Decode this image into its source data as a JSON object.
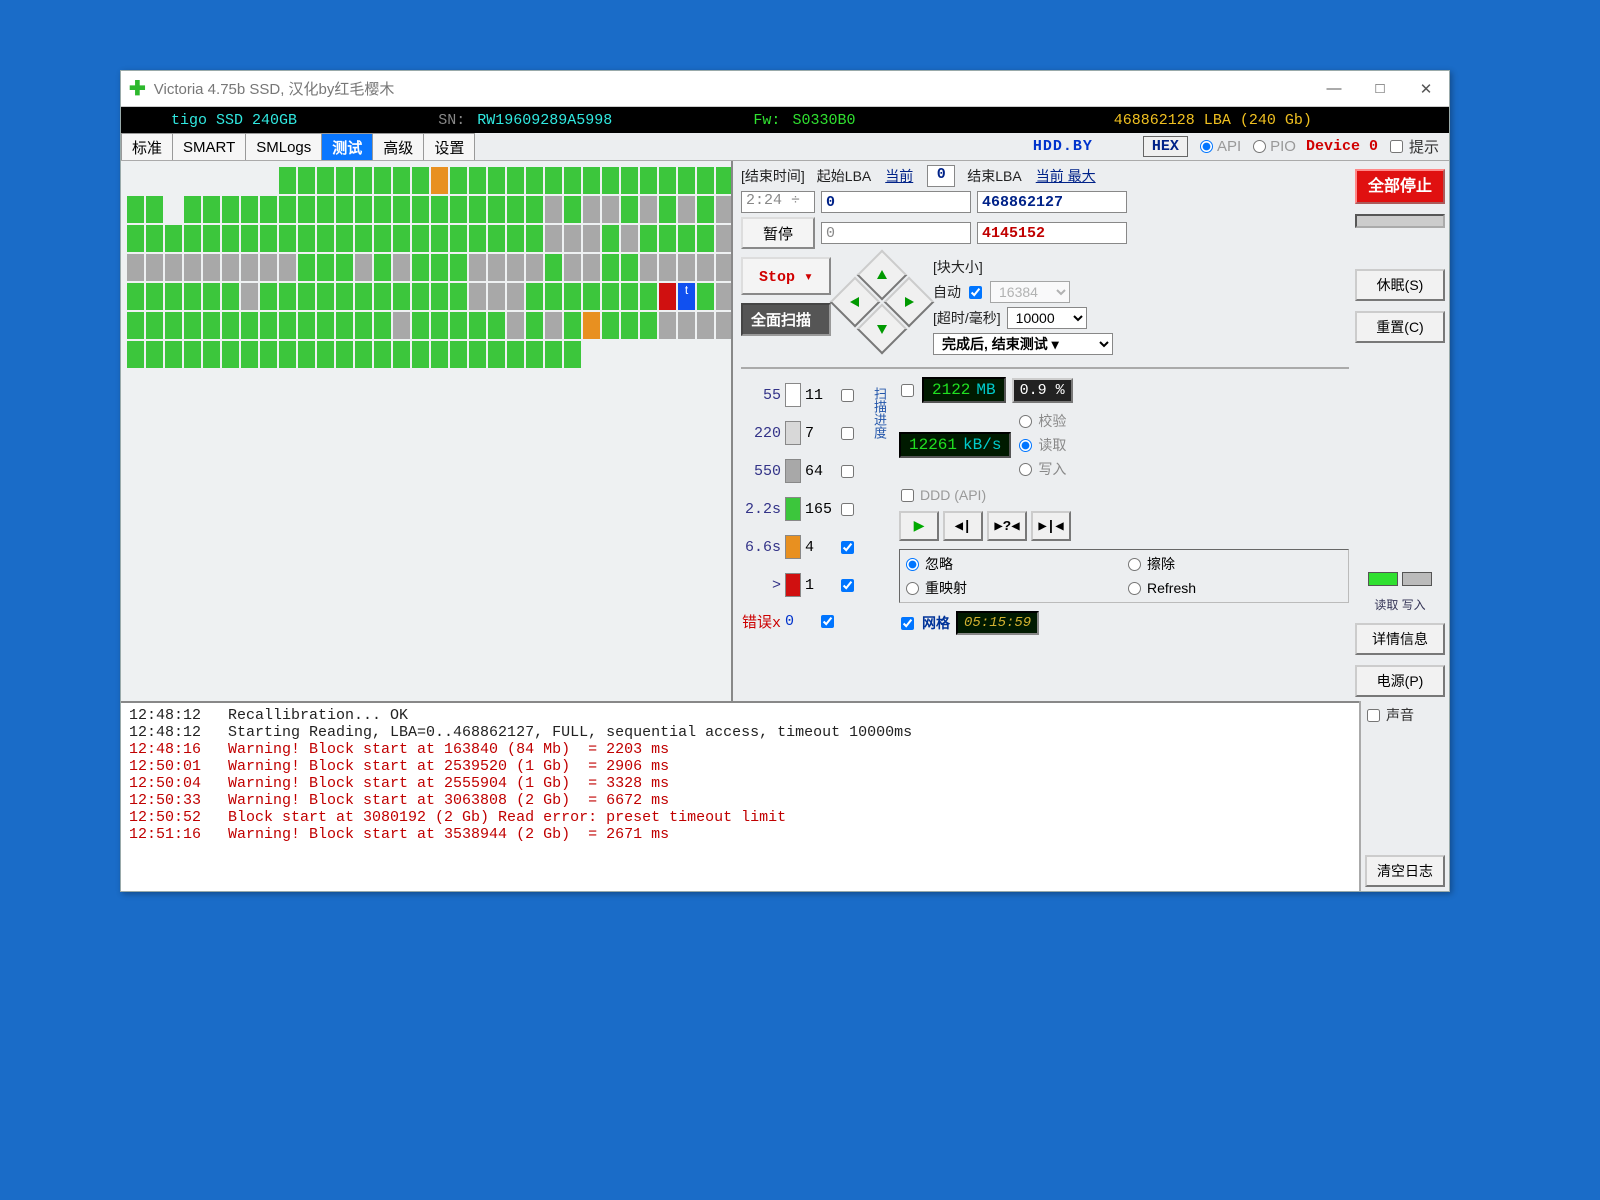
{
  "title": "Victoria 4.75b SSD, 汉化by红毛樱木",
  "info": {
    "model_label": "tigo SSD 240GB",
    "sn_label": "SN: ",
    "sn": "RW19609289A5998",
    "fw_label": "Fw: ",
    "fw": "S0330B0",
    "lba": "468862128 LBA (240 Gb)"
  },
  "tabs": {
    "items": [
      {
        "key": "std",
        "label": "标准"
      },
      {
        "key": "smart",
        "label": "SMART"
      },
      {
        "key": "smlogs",
        "label": "SMLogs"
      },
      {
        "key": "test",
        "label": "测试",
        "active": true
      },
      {
        "key": "adv",
        "label": "高级"
      },
      {
        "key": "set",
        "label": "设置"
      }
    ],
    "hdd_by": "HDD.BY",
    "hex": "HEX",
    "api": "API",
    "pio": "PIO",
    "device": "Device 0",
    "hint": "提示"
  },
  "grid": {
    "cols": 32,
    "rows_total": 8,
    "row1_lead_empty": 8,
    "colors": {
      "ok": "#3cc63c",
      "gray": "#a8a8a8",
      "orange": "#e89020",
      "red": "#d01010",
      "blue": "#1050f0",
      "bg": "#eef1f2"
    },
    "rows": [
      "________ggggggggOggggggggggggggg",
      "gg.gggggggggggggggggggGgGGgGgGgG",
      "ggggggggggggggggggggggGGGgGggggG",
      "GGGGGGGGGgggGgGgggGGGGgGGggGGGGG",
      "ggggggGgggggggggggGGGgggggggRBgG",
      "ggggggggggggggGgggggGgGgOgggGGGG",
      "gggggggggggggggggggggggg________",
      ""
    ]
  },
  "ctrl": {
    "endtime_lbl": "[结束时间]",
    "startlba_lbl": "起始LBA",
    "current": "当前",
    "current_val": "0",
    "endlba_lbl": "结束LBA",
    "curmax": "当前 最大",
    "time": "2:24 ÷",
    "startlba": "0",
    "endlba": "468862127",
    "cur2": "0",
    "blk2": "4145152",
    "pause": "暂停",
    "stop": "Stop ▾",
    "fullscan": "全面扫描",
    "blksize_lbl": "[块大小]",
    "auto": "自动",
    "blksize": "16384",
    "timeout_lbl": "[超时/毫秒]",
    "timeout": "10000",
    "aftertest": "完成后, 结束测试 ▾"
  },
  "legend": {
    "rows": [
      {
        "thr": "55",
        "color": "#ffffff",
        "cnt": "11",
        "chk": false
      },
      {
        "thr": "220",
        "color": "#d8d8d8",
        "cnt": "7",
        "chk": false
      },
      {
        "thr": "550",
        "color": "#a8a8a8",
        "cnt": "64",
        "chk": false
      },
      {
        "thr": "2.2s",
        "color": "#3cc63c",
        "cnt": "165",
        "chk": false
      },
      {
        "thr": "6.6s",
        "color": "#e89020",
        "cnt": "4",
        "chk": true
      },
      {
        "thr": ">",
        "color": "#d01010",
        "cnt": "1",
        "chk": true
      }
    ],
    "err_lbl": "错误x",
    "err_cnt": "0"
  },
  "meters": {
    "vlabel": "扫描进度",
    "mb": "2122",
    "mb_unit": "MB",
    "pct": "0.9 %",
    "speed": "12261",
    "speed_unit": "kB/s",
    "ddd": "DDD (API)",
    "r1": "校验",
    "r2": "读取",
    "r3": "写入"
  },
  "mode": {
    "ignore": "忽略",
    "erase": "擦除",
    "remap": "重映射",
    "refresh": "Refresh",
    "grid": "网格",
    "timer": "05:15:59"
  },
  "side": {
    "stopall": "全部停止",
    "sleep": "休眠(S)",
    "reset": "重置(C)",
    "read": "读取",
    "write": "写入",
    "info": "详情信息",
    "power": "电源(P)"
  },
  "log": {
    "lines": [
      {
        "ts": "12:48:12",
        "msg": "Recallibration... OK",
        "warn": false
      },
      {
        "ts": "12:48:12",
        "msg": "Starting Reading, LBA=0..468862127, FULL, sequential access, timeout 10000ms",
        "warn": false
      },
      {
        "ts": "12:48:16",
        "msg": "Warning! Block start at 163840 (84 Mb)  = 2203 ms",
        "warn": true
      },
      {
        "ts": "12:50:01",
        "msg": "Warning! Block start at 2539520 (1 Gb)  = 2906 ms",
        "warn": true
      },
      {
        "ts": "12:50:04",
        "msg": "Warning! Block start at 2555904 (1 Gb)  = 3328 ms",
        "warn": true
      },
      {
        "ts": "12:50:33",
        "msg": "Warning! Block start at 3063808 (2 Gb)  = 6672 ms",
        "warn": true
      },
      {
        "ts": "12:50:52",
        "msg": "Block start at 3080192 (2 Gb) Read error: preset timeout limit",
        "warn": true
      },
      {
        "ts": "12:51:16",
        "msg": "Warning! Block start at 3538944 (2 Gb)  = 2671 ms",
        "warn": true
      }
    ],
    "sound": "声音",
    "clear": "清空日志"
  }
}
